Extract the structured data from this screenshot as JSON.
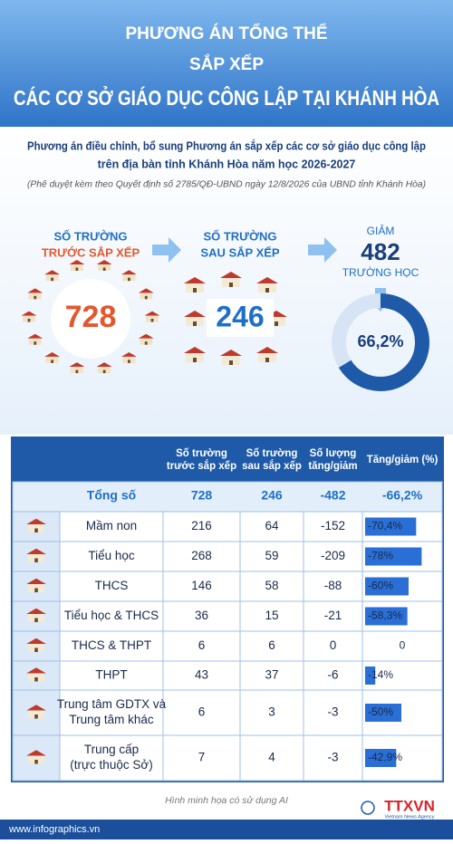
{
  "header": {
    "title_line1": "PHƯƠNG ÁN TỔNG THỂ",
    "title_line2": "SẮP XẾP",
    "title_line3": "CÁC CƠ SỞ GIÁO DỤC CÔNG LẬP TẠI KHÁNH HÒA"
  },
  "intro": {
    "lines": [
      "Phương án điều chỉnh, bổ sung Phương án sắp xếp các cơ sở giáo dục công lập",
      "trên địa bàn tỉnh Khánh Hòa năm học 2026-2027"
    ],
    "note": "(Phê duyệt kèm theo Quyết định số 2785/QĐ-UBND ngày 12/8/2026 của UBND tỉnh Khánh Hòa)"
  },
  "summary": {
    "before": {
      "label_line1": "SỐ TRƯỜNG",
      "label_line2": "TRƯỚC SẮP XẾP",
      "value": 728
    },
    "after": {
      "label_line1": "SỐ TRƯỜNG",
      "label_line2": "SAU SẮP XẾP",
      "value": 246
    },
    "reduction": {
      "label_top": "GIẢM",
      "value": 482,
      "label_bottom": "TRƯỜNG HỌC",
      "percent": {
        "value": 66.2,
        "label": "66,2%"
      }
    }
  },
  "table": {
    "columns": [
      [
        "Số trường",
        "trước sắp xếp"
      ],
      [
        "Số trường",
        "sau sắp xếp"
      ],
      [
        "Số lượng",
        "tăng/giảm"
      ],
      [
        "Tăng/giảm (%)"
      ]
    ],
    "total": {
      "name": "Tổng số",
      "before": 728,
      "after": 246,
      "change": -482,
      "percent": {
        "value": -66.2,
        "label": "-66,2%"
      }
    },
    "rows": [
      {
        "name": [
          "Mầm non"
        ],
        "before": 216,
        "after": 64,
        "change": -152,
        "percent": {
          "value": -70.4,
          "label": "-70,4%"
        }
      },
      {
        "name": [
          "Tiểu học"
        ],
        "before": 268,
        "after": 59,
        "change": -209,
        "percent": {
          "value": -78,
          "label": "-78%"
        }
      },
      {
        "name": [
          "THCS"
        ],
        "before": 146,
        "after": 58,
        "change": -88,
        "percent": {
          "value": -60,
          "label": "-60%"
        }
      },
      {
        "name": [
          "Tiểu học & THCS"
        ],
        "before": 36,
        "after": 15,
        "change": -21,
        "percent": {
          "value": -58.3,
          "label": "-58,3%"
        }
      },
      {
        "name": [
          "THCS & THPT"
        ],
        "before": 6,
        "after": 6,
        "change": 0,
        "percent": 0
      },
      {
        "name": [
          "THPT"
        ],
        "before": 43,
        "after": 37,
        "change": -6,
        "percent": {
          "value": -14,
          "label": "-14%"
        }
      },
      {
        "name": [
          "Trung tâm GDTX và",
          "Trung tâm khác"
        ],
        "before": 6,
        "after": 3,
        "change": -3,
        "percent": {
          "value": -50,
          "label": "-50%"
        }
      },
      {
        "name": [
          "Trung cấp",
          "(trực thuộc Sở)"
        ],
        "before": 7,
        "after": 4,
        "change": -3,
        "percent": {
          "value": -42.9,
          "label": "-42,9%"
        }
      }
    ]
  },
  "footer": {
    "note": "Hình minh họa có sử dụng AI",
    "website": "www.infographics.vn",
    "logo": "TTXVN",
    "agency": "Vietnam News Agency"
  }
}
